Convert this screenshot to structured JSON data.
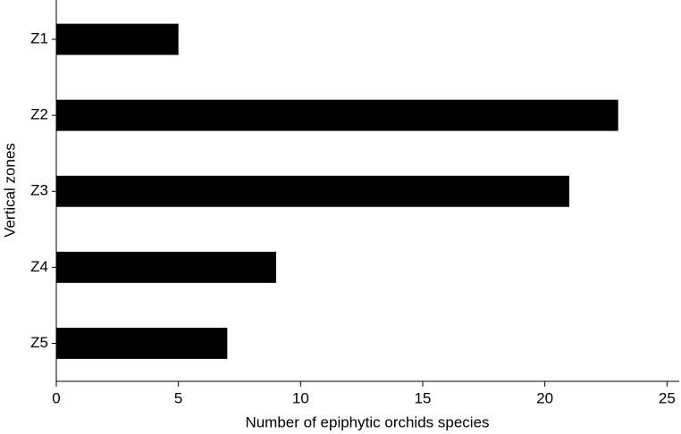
{
  "chart_data": {
    "type": "bar",
    "orientation": "horizontal",
    "x_label": "Number of epiphytic orchids species",
    "y_label": "Vertical zones",
    "categories": [
      "Z1",
      "Z2",
      "Z3",
      "Z4",
      "Z5"
    ],
    "values": [
      5,
      23,
      21,
      9,
      7
    ],
    "color": "#000000",
    "xlim": [
      0,
      25.5
    ],
    "xticks": [
      0,
      5,
      10,
      15,
      20,
      25
    ],
    "grid": false
  }
}
